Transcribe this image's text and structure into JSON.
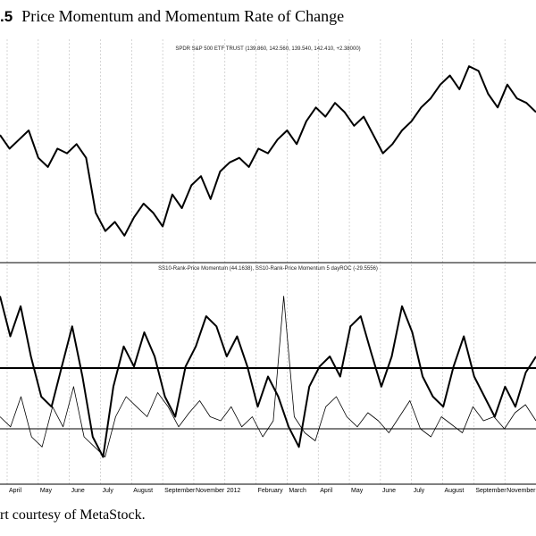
{
  "figure": {
    "number": ".5",
    "title": "Price Momentum and Momentum Rate of Change",
    "credit": "rt courtesy of MetaStock."
  },
  "chart_data": [
    {
      "type": "line",
      "panel": "upper",
      "legend": "SPDR S&P 500 ETF TRUST (139.860, 142.560, 139.540, 142.410, +2.38000)",
      "x_labels": [
        "April",
        "May",
        "June",
        "July",
        "August",
        "September",
        "November",
        "2012",
        "February",
        "March",
        "April",
        "May",
        "June",
        "July",
        "August",
        "September",
        "November"
      ],
      "series": [
        {
          "values": [
            135,
            132,
            134,
            136,
            130,
            128,
            132,
            131,
            133,
            130,
            118,
            114,
            116,
            113,
            117,
            120,
            118,
            115,
            122,
            119,
            124,
            126,
            121,
            127,
            129,
            130,
            128,
            132,
            131,
            134,
            136,
            133,
            138,
            141,
            139,
            142,
            140,
            137,
            139,
            135,
            131,
            133,
            136,
            138,
            141,
            143,
            146,
            148,
            145,
            150,
            149,
            144,
            141,
            146,
            143,
            142,
            140
          ]
        }
      ]
    },
    {
      "type": "line",
      "panel": "lower",
      "legend": "SS10-Rank-Price Momentum (44.1638), SS10-Rank-Price Momentum 5 dayROC (-29.5556)",
      "reference_lines": [
        "upper",
        "lower"
      ],
      "series": [
        {
          "style": "thick",
          "values": [
            90,
            70,
            85,
            60,
            40,
            35,
            55,
            75,
            50,
            20,
            10,
            45,
            65,
            55,
            72,
            60,
            40,
            30,
            55,
            65,
            80,
            75,
            60,
            70,
            55,
            35,
            50,
            40,
            25,
            15,
            45,
            55,
            60,
            50,
            75,
            80,
            62,
            45,
            60,
            85,
            72,
            50,
            40,
            35,
            55,
            70,
            50,
            40,
            30,
            45,
            35,
            52,
            60
          ]
        },
        {
          "style": "thin",
          "values": [
            30,
            25,
            40,
            20,
            15,
            35,
            25,
            45,
            20,
            15,
            10,
            30,
            40,
            35,
            30,
            42,
            35,
            25,
            32,
            38,
            30,
            28,
            35,
            25,
            30,
            20,
            28,
            90,
            30,
            22,
            18,
            35,
            40,
            30,
            25,
            32,
            28,
            22,
            30,
            38,
            24,
            20,
            30,
            26,
            22,
            35,
            28,
            30,
            24,
            32,
            36,
            28
          ]
        }
      ]
    }
  ]
}
